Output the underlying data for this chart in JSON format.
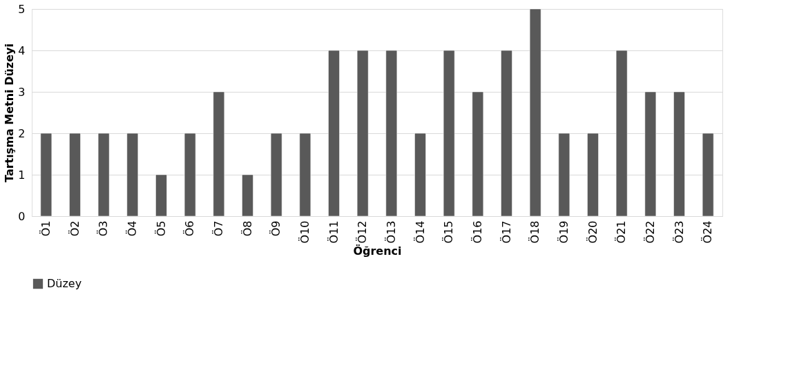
{
  "chart_data": {
    "type": "bar",
    "xlabel": "Öğrenci",
    "ylabel": "Tartışma Metni Düzeyi",
    "categories": [
      "Ö1",
      "Ö2",
      "Ö3",
      "Ö4",
      "Ö5",
      "Ö6",
      "Ö7",
      "Ö8",
      "Ö9",
      "Ö10",
      "Ö11",
      "Ö12",
      "Ö13",
      "Ö14",
      "Ö15",
      "Ö16",
      "Ö17",
      "Ö18",
      "Ö19",
      "Ö20",
      "Ö21",
      "Ö22",
      "Ö23",
      "Ö24"
    ],
    "series": [
      {
        "name": "Düzey",
        "color": "#595959",
        "values": [
          2,
          2,
          2,
          2,
          1,
          2,
          3,
          1,
          2,
          2,
          4,
          4,
          4,
          2,
          4,
          3,
          4,
          5,
          2,
          2,
          4,
          3,
          3,
          2
        ]
      }
    ],
    "ylim": [
      0,
      5
    ],
    "yticks": [
      0,
      1,
      2,
      3,
      4,
      5
    ],
    "grid": "y",
    "legend": "bottom"
  }
}
